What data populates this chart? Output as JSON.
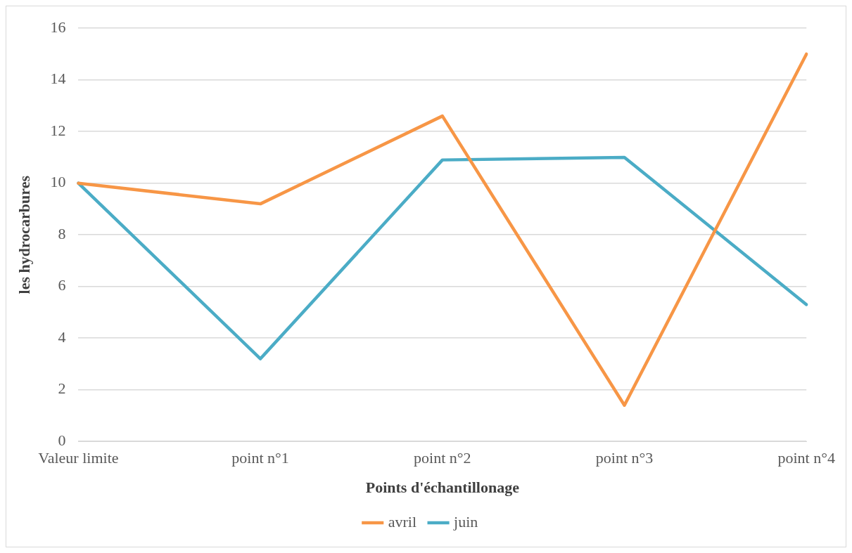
{
  "chart_data": {
    "type": "line",
    "xlabel": "Points d'échantillonage",
    "ylabel": "les hydrocarbures",
    "categories": [
      "Valeur limite",
      "point n°1",
      "point n°2",
      "point n°3",
      "point n°4"
    ],
    "series": [
      {
        "name": "avril",
        "color": "#f79646",
        "values": [
          10,
          9.2,
          12.6,
          1.4,
          15
        ]
      },
      {
        "name": "juin",
        "color": "#4bacc6",
        "values": [
          10,
          3.2,
          10.9,
          11,
          5.3
        ]
      }
    ],
    "ylim": [
      0,
      16
    ],
    "yticks": [
      0,
      2,
      4,
      6,
      8,
      10,
      12,
      14,
      16
    ],
    "grid": "y",
    "legend": "bottom",
    "marker": "none"
  }
}
